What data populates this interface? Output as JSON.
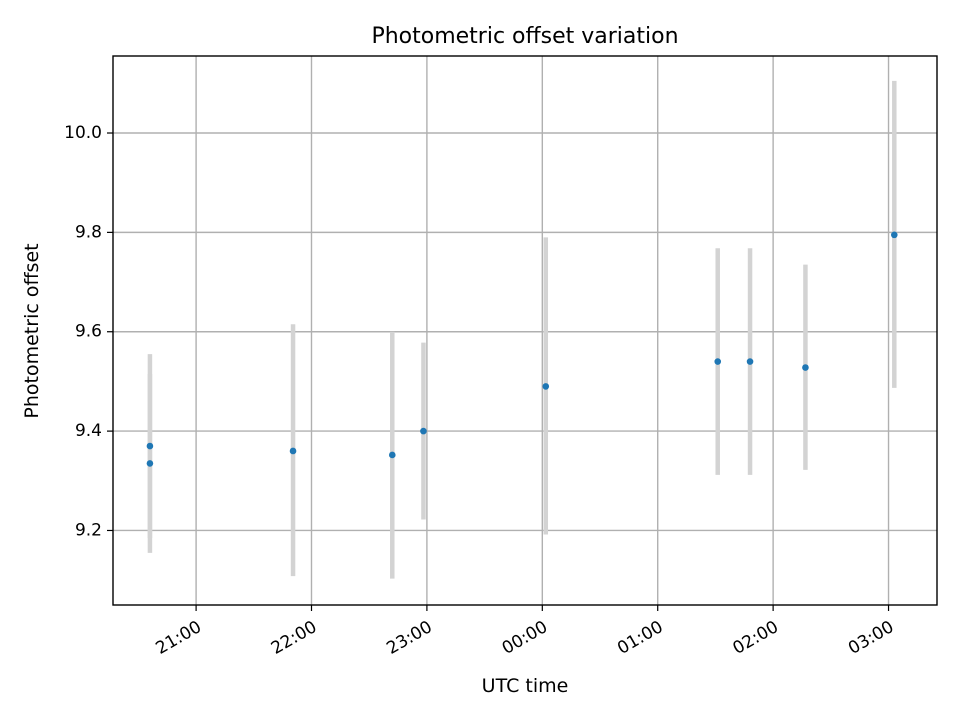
{
  "chart_data": {
    "type": "scatter",
    "title": "Photometric offset variation",
    "xlabel": "UTC time",
    "ylabel": "Photometric offset",
    "grid": true,
    "x_unit": "hours relative to 00:00 UTC",
    "xlim": [
      -3.72,
      3.42
    ],
    "ylim": [
      9.05,
      10.155
    ],
    "x_ticks": [
      {
        "value": -3,
        "label": "21:00"
      },
      {
        "value": -2,
        "label": "22:00"
      },
      {
        "value": -1,
        "label": "23:00"
      },
      {
        "value": 0,
        "label": "00:00"
      },
      {
        "value": 1,
        "label": "01:00"
      },
      {
        "value": 2,
        "label": "02:00"
      },
      {
        "value": 3,
        "label": "03:00"
      }
    ],
    "y_ticks": [
      {
        "value": 9.2,
        "label": "9.2"
      },
      {
        "value": 9.4,
        "label": "9.4"
      },
      {
        "value": 9.6,
        "label": "9.6"
      },
      {
        "value": 9.8,
        "label": "9.8"
      },
      {
        "value": 10.0,
        "label": "10.0"
      }
    ],
    "points": [
      {
        "x": -3.4,
        "y": 9.335,
        "err_low": 9.155,
        "err_high": 9.515
      },
      {
        "x": -3.4,
        "y": 9.37,
        "err_low": 9.185,
        "err_high": 9.555
      },
      {
        "x": -2.16,
        "y": 9.36,
        "err_low": 9.108,
        "err_high": 9.615
      },
      {
        "x": -1.3,
        "y": 9.352,
        "err_low": 9.103,
        "err_high": 9.6
      },
      {
        "x": -1.03,
        "y": 9.4,
        "err_low": 9.222,
        "err_high": 9.578
      },
      {
        "x": 0.03,
        "y": 9.49,
        "err_low": 9.192,
        "err_high": 9.79
      },
      {
        "x": 1.52,
        "y": 9.54,
        "err_low": 9.312,
        "err_high": 9.768
      },
      {
        "x": 1.8,
        "y": 9.54,
        "err_low": 9.312,
        "err_high": 9.768
      },
      {
        "x": 2.28,
        "y": 9.528,
        "err_low": 9.322,
        "err_high": 9.735
      },
      {
        "x": 3.05,
        "y": 9.795,
        "err_low": 9.487,
        "err_high": 10.105
      }
    ]
  }
}
